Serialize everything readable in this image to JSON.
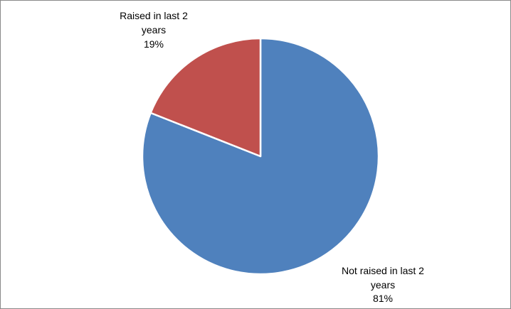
{
  "chart_data": {
    "type": "pie",
    "title": "",
    "legend": "none",
    "slices": [
      {
        "label_line1": "Not raised in last 2",
        "label_line2": "years",
        "percent_label": "81%",
        "value": 81,
        "color": "#4F81BD"
      },
      {
        "label_line1": "Raised in last 2",
        "label_line2": "years",
        "percent_label": "19%",
        "value": 19,
        "color": "#C0504D"
      }
    ],
    "start_angle_deg": 0,
    "direction": "clockwise",
    "slice_border_color": "#FFFFFF"
  }
}
